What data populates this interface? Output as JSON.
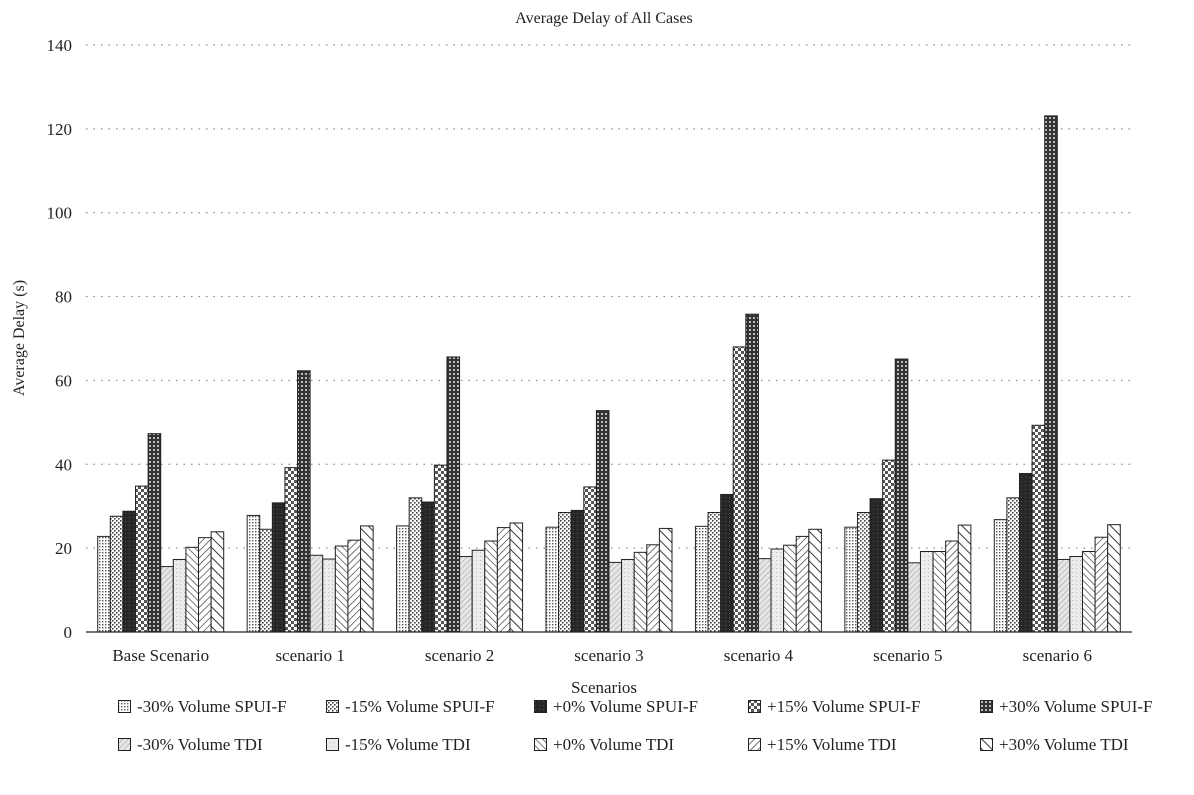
{
  "chart_data": {
    "type": "bar",
    "title": "Average Delay of All Cases",
    "xlabel": "Scenarios",
    "ylabel": "Average Delay (s)",
    "ylim": [
      0,
      140
    ],
    "yticks": [
      0,
      20,
      40,
      60,
      80,
      100,
      120,
      140
    ],
    "grid": "dotted-horizontal",
    "legend_position": "bottom",
    "categories": [
      "Base Scenario",
      "scenario 1",
      "scenario 2",
      "scenario 3",
      "scenario 4",
      "scenario 5",
      "scenario 6"
    ],
    "series": [
      {
        "name": "-30% Volume SPUI-F",
        "pattern": "fine-dots",
        "values": [
          22.8,
          27.8,
          25.3,
          25.0,
          25.2,
          25.0,
          26.8
        ]
      },
      {
        "name": "-15% Volume SPUI-F",
        "pattern": "sparse-dots",
        "values": [
          27.6,
          24.5,
          32.0,
          28.5,
          28.5,
          28.5,
          32.0
        ]
      },
      {
        "name": "+0% Volume SPUI-F",
        "pattern": "solid-dark",
        "values": [
          28.8,
          30.8,
          31.0,
          29.0,
          32.8,
          31.8,
          37.8
        ]
      },
      {
        "name": "+15% Volume SPUI-F",
        "pattern": "checker",
        "values": [
          34.8,
          39.2,
          39.8,
          34.6,
          68.0,
          41.0,
          49.3
        ]
      },
      {
        "name": "+30% Volume SPUI-F",
        "pattern": "dark-dots",
        "values": [
          47.3,
          62.3,
          65.6,
          52.8,
          75.8,
          65.1,
          123.1
        ]
      },
      {
        "name": "-30% Volume TDI",
        "pattern": "light-diagonal",
        "values": [
          15.6,
          18.3,
          18.0,
          16.6,
          17.5,
          16.5,
          17.3
        ]
      },
      {
        "name": "-15% Volume TDI",
        "pattern": "light-fill",
        "values": [
          17.3,
          17.4,
          19.5,
          17.3,
          19.8,
          19.2,
          18.0
        ]
      },
      {
        "name": "+0% Volume TDI",
        "pattern": "back-diagonal",
        "values": [
          20.2,
          20.5,
          21.7,
          19.0,
          20.7,
          19.2,
          19.2
        ]
      },
      {
        "name": "+15% Volume TDI",
        "pattern": "forward-diagonal",
        "values": [
          22.5,
          21.9,
          24.9,
          20.8,
          22.8,
          21.7,
          22.6
        ]
      },
      {
        "name": "+30% Volume TDI",
        "pattern": "wide-back-diagonal",
        "values": [
          23.9,
          25.3,
          26.0,
          24.7,
          24.5,
          25.5,
          25.6
        ]
      }
    ]
  }
}
